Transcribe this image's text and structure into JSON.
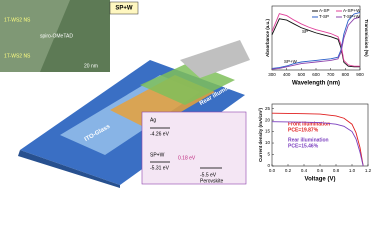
{
  "illustration": {
    "badge": "SP+W",
    "rear": "Rear illumination",
    "front": "Front illumination",
    "substrate": "ITO-Glass",
    "micrograph": {
      "layer": "spiro-OMeTAD",
      "flake_top": "1T-WS2 NS",
      "flake_bottom": "1T-WS2 NS",
      "scale": "20 nm"
    },
    "energy": {
      "metal": "Ag",
      "metal_level": "-4.26 eV",
      "htl": "SP+W",
      "htl_level": "-5.31 eV",
      "offset": "0.18 eV",
      "pvk_level": "-5.5 eV",
      "pvk": "Perovskite"
    }
  },
  "chart_data": [
    {
      "type": "line",
      "x_label": "Wavelength (nm)",
      "y_label": "Absorbance (a.u.)",
      "y2_label": "Transmission (%)",
      "x": [
        300,
        350,
        400,
        450,
        500,
        550,
        600,
        650,
        700,
        750,
        770,
        790,
        820,
        860,
        900
      ],
      "xlim": [
        300,
        900
      ],
      "xticks": [
        300,
        400,
        500,
        600,
        700,
        800,
        900
      ],
      "ylim": [
        0,
        1
      ],
      "y2lim": [
        0,
        80
      ],
      "series": [
        {
          "name": "A-SP",
          "color": "#111111",
          "values": [
            0.55,
            0.8,
            0.78,
            0.72,
            0.66,
            0.62,
            0.58,
            0.55,
            0.52,
            0.48,
            0.35,
            0.12,
            0.06,
            0.05,
            0.05
          ]
        },
        {
          "name": "A-SP+W",
          "color": "#e0409a",
          "values": [
            0.6,
            0.88,
            0.85,
            0.78,
            0.72,
            0.67,
            0.63,
            0.6,
            0.57,
            0.52,
            0.4,
            0.15,
            0.08,
            0.06,
            0.06
          ]
        },
        {
          "name": "T-SP",
          "color": "#2b5fc9",
          "axis": "y2",
          "values": [
            2,
            3,
            5,
            8,
            10,
            11,
            12,
            13,
            14,
            16,
            25,
            45,
            62,
            70,
            72
          ]
        },
        {
          "name": "T-SP+W",
          "color": "#8e44ad",
          "axis": "y2",
          "values": [
            1,
            2,
            4,
            6,
            8,
            9,
            10,
            11,
            12,
            14,
            22,
            40,
            56,
            64,
            66
          ]
        }
      ],
      "annotations": [
        "SP",
        "SP+W"
      ]
    },
    {
      "type": "line",
      "x_label": "Voltage (V)",
      "y_label": "Current density (mA/cm²)",
      "x": [
        0,
        0.2,
        0.4,
        0.6,
        0.8,
        0.9,
        1.0,
        1.05,
        1.1,
        1.14
      ],
      "xlim": [
        0,
        1.2
      ],
      "xticks": [
        {
          "value": 0,
          "label": "0.0"
        },
        0.2,
        0.4,
        0.6,
        0.8,
        {
          "value": 1,
          "label": "1.0"
        },
        1.2
      ],
      "ylim": [
        0,
        27
      ],
      "yticks": [
        0,
        5,
        10,
        15,
        20,
        25
      ],
      "series": [
        {
          "name": "Front illumination",
          "color": "#e02020",
          "values": [
            23.0,
            22.9,
            22.8,
            22.6,
            21.8,
            20.8,
            18.2,
            14.5,
            8,
            0
          ]
        },
        {
          "name": "Rear illumination",
          "color": "#7b3fbf",
          "values": [
            19.3,
            19.2,
            19.1,
            18.9,
            18.2,
            17.3,
            15.0,
            11.8,
            6,
            0
          ]
        }
      ],
      "annotations": [
        "PCE=19.87%",
        "PCE=15.46%"
      ]
    }
  ]
}
